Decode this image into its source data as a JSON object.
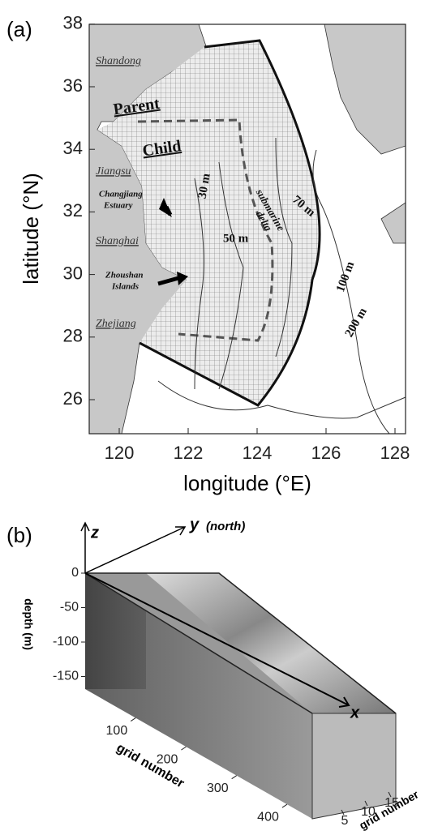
{
  "panel_a": {
    "label": "(a)",
    "xlabel": "longitude (°E)",
    "ylabel": "latitude (°N)",
    "xticks": [
      120,
      122,
      124,
      126,
      128
    ],
    "yticks": [
      26,
      28,
      30,
      32,
      34,
      36,
      38
    ],
    "annotations": [
      "Shandong",
      "Parent",
      "Child",
      "Jiangsu",
      "Changjiang",
      "Estuary",
      "Shanghai",
      "Zhoushan",
      "Islands",
      "Zhejiang",
      "30 m",
      "50 m",
      "submarine",
      "delta",
      "70 m",
      "100 m",
      "200 m"
    ]
  },
  "panel_b": {
    "label": "(b)",
    "z_axis": "z",
    "y_axis": "y",
    "y_axis_note": "(north)",
    "x_axis": "x",
    "zlabel": "depth (m)",
    "zticks": [
      0,
      -50,
      -100,
      -150
    ],
    "xlabel": "grid number",
    "xticks": [
      100,
      200,
      300,
      400
    ],
    "ylabel": "grid number",
    "yticks": [
      5,
      10,
      15
    ]
  }
}
